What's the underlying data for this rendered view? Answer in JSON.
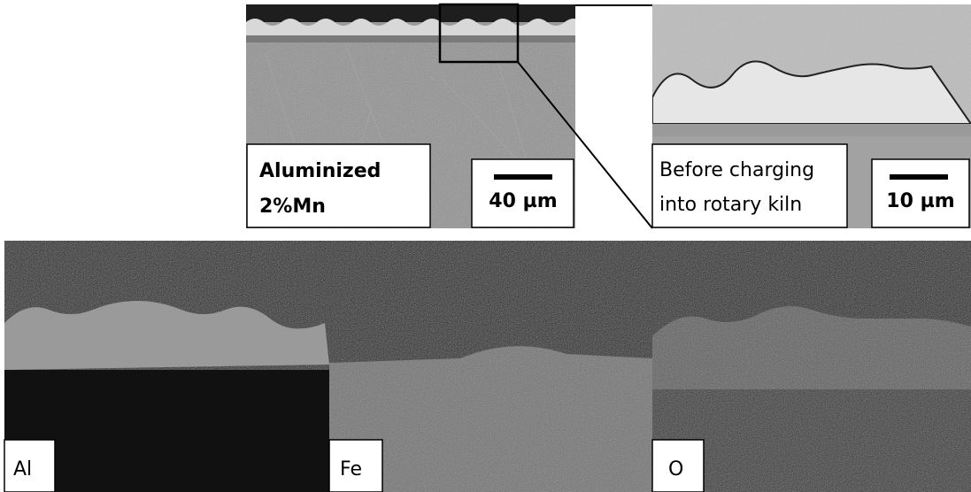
{
  "sem_image": {
    "label_lines": [
      "Aluminized",
      "2%Mn"
    ],
    "scale_bar": "40 µm"
  },
  "zoom_image": {
    "label_lines": [
      "Before charging",
      "into rotary kiln"
    ],
    "scale_bar": "10 µm"
  },
  "eds_maps": [
    {
      "element": "Al"
    },
    {
      "element": "Fe"
    },
    {
      "element": "O"
    }
  ]
}
